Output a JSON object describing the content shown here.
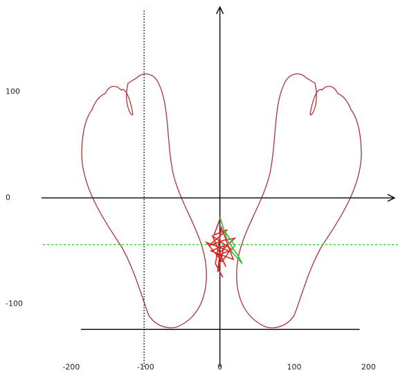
{
  "chart_data": {
    "type": "line",
    "xlim": [
      -240,
      235
    ],
    "ylim": [
      -165,
      180
    ],
    "xticks": [
      -200,
      -100,
      0,
      100,
      200
    ],
    "yticks": [
      -100,
      0,
      100
    ],
    "vline_x": -102,
    "hline_y": -44,
    "baseline_y": -124,
    "baseline_x": [
      -187,
      188
    ],
    "series": [
      {
        "color": "#dd2222",
        "x": [
          0,
          -8,
          10,
          -15,
          5,
          20,
          -5,
          12,
          -18,
          3,
          15,
          -10,
          8,
          0,
          -3,
          6,
          -12,
          18,
          2,
          -6,
          4
        ],
        "y": [
          -20,
          -35,
          -30,
          -45,
          -40,
          -38,
          -55,
          -50,
          -42,
          -60,
          -48,
          -36,
          -65,
          -52,
          -70,
          -45,
          -50,
          -58,
          -28,
          -62,
          -75
        ]
      },
      {
        "color": "#33bb33",
        "x": [
          0,
          10,
          25,
          30,
          15,
          20,
          5
        ],
        "y": [
          -18,
          -40,
          -55,
          -62,
          -50,
          -45,
          -30
        ]
      }
    ]
  }
}
